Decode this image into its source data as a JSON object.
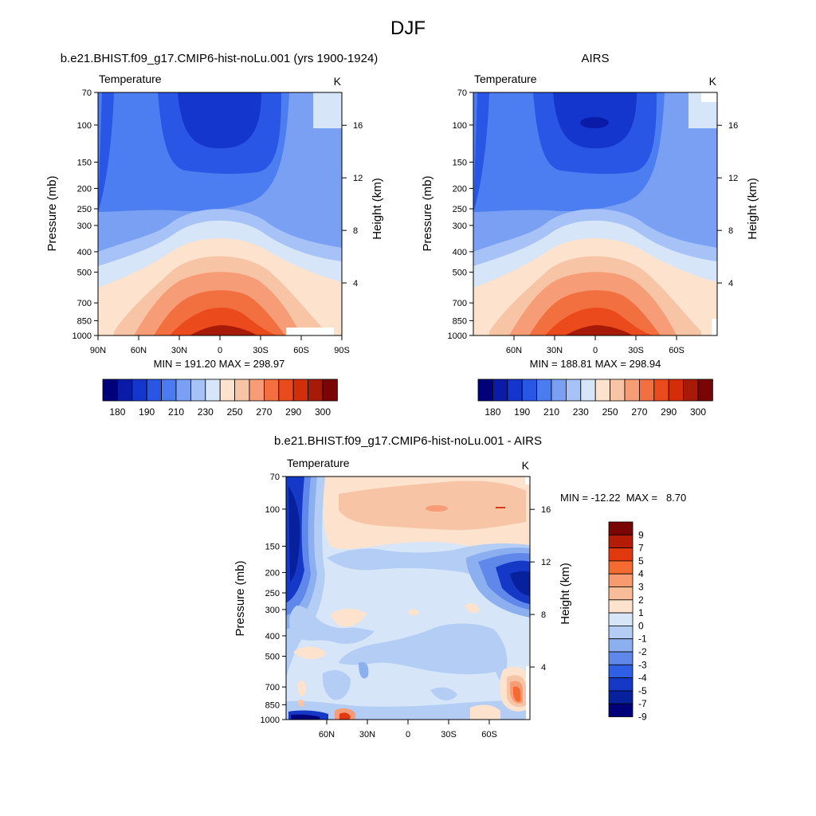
{
  "figure_title": "DJF",
  "chart_data": [
    {
      "type": "contour",
      "title": "b.e21.BHIST.f09_g17.CMIP6-hist-noLu.001 (yrs 1900-1924)",
      "left_label": "Temperature",
      "right_label": "K",
      "ylabel": "Pressure (mb)",
      "ylabel_right": "Height (km)",
      "pressure_ticks": [
        "70",
        "100",
        "150",
        "200",
        "250",
        "300",
        "400",
        "500",
        "700",
        "850",
        "1000"
      ],
      "height_ticks": [
        "16",
        "12",
        "8",
        "4"
      ],
      "lat_ticks": [
        "90N",
        "60N",
        "30N",
        "0",
        "30S",
        "60S",
        "90S"
      ],
      "stats": "MIN = 191.20  MAX = 298.97",
      "min": 191.2,
      "max": 298.97,
      "ylim": [
        1000,
        70
      ],
      "xlim": [
        90,
        -90
      ]
    },
    {
      "type": "contour",
      "title": "AIRS",
      "left_label": "Temperature",
      "right_label": "K",
      "ylabel": "Pressure (mb)",
      "ylabel_right": "Height (km)",
      "pressure_ticks": [
        "70",
        "100",
        "150",
        "200",
        "250",
        "300",
        "400",
        "500",
        "700",
        "850",
        "1000"
      ],
      "height_ticks": [
        "16",
        "12",
        "8",
        "4"
      ],
      "lat_ticks": [
        "60N",
        "30N",
        "0",
        "30S",
        "60S"
      ],
      "stats": "MIN = 188.81  MAX = 298.94",
      "min": 188.81,
      "max": 298.94,
      "ylim": [
        1000,
        70
      ],
      "xlim": [
        90,
        -90
      ]
    },
    {
      "type": "contour",
      "title": "b.e21.BHIST.f09_g17.CMIP6-hist-noLu.001 - AIRS",
      "left_label": "Temperature",
      "right_label": "K",
      "ylabel": "Pressure (mb)",
      "ylabel_right": "Height (km)",
      "pressure_ticks": [
        "70",
        "100",
        "150",
        "200",
        "250",
        "300",
        "400",
        "500",
        "700",
        "850",
        "1000"
      ],
      "height_ticks": [
        "16",
        "12",
        "8",
        "4"
      ],
      "lat_ticks": [
        "60N",
        "30N",
        "0",
        "30S",
        "60S"
      ],
      "stats": "MIN = -12.22  MAX =   8.70",
      "min": -12.22,
      "max": 8.7,
      "ylim": [
        1000,
        70
      ],
      "xlim": [
        90,
        -90
      ]
    }
  ],
  "colorbar_abs": {
    "tick_labels": [
      "180",
      "190",
      "210",
      "230",
      "250",
      "270",
      "290",
      "300"
    ],
    "colors": [
      "#00007a",
      "#0a1ba8",
      "#1536cc",
      "#2a56e6",
      "#4a7cf0",
      "#7aa0f4",
      "#a7c2f6",
      "#d6e5f8",
      "#fde2cd",
      "#f8c4a6",
      "#f69c76",
      "#f2703f",
      "#ea4a1c",
      "#d42d0a",
      "#a81a08",
      "#7a0505"
    ]
  },
  "colorbar_diff": {
    "tick_labels": [
      "9",
      "7",
      "5",
      "4",
      "3",
      "2",
      "1",
      "0",
      "-1",
      "-2",
      "-3",
      "-4",
      "-5",
      "-7",
      "-9"
    ],
    "colors": [
      "#7a0505",
      "#b51c08",
      "#e2380f",
      "#f56a30",
      "#f79a70",
      "#f8bc98",
      "#fde2cd",
      "#d6e5f8",
      "#b4cdf5",
      "#8cafef",
      "#5f88ea",
      "#2f5fe4",
      "#1538c6",
      "#07209c",
      "#00007a"
    ]
  }
}
